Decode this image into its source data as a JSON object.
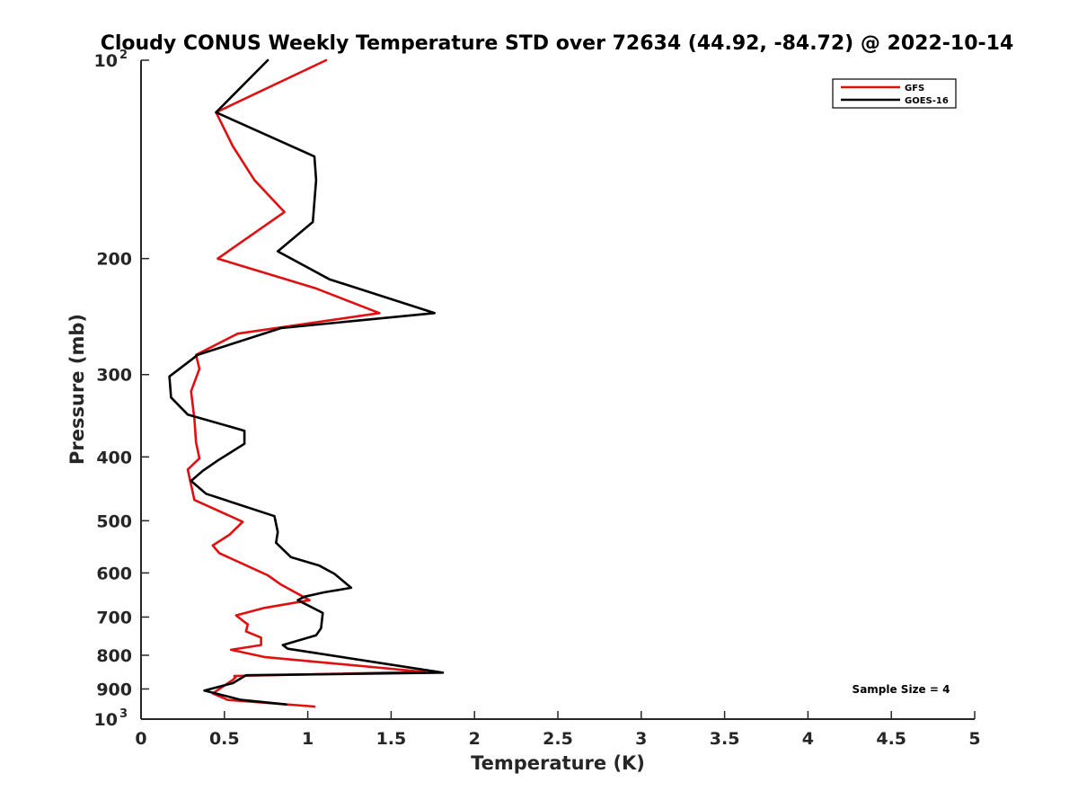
{
  "chart_data": {
    "type": "line",
    "title": "Cloudy CONUS Weekly Temperature STD over 72634 (44.92, -84.72) @ 2022-10-14",
    "xlabel": "Temperature (K)",
    "ylabel": "Pressure (mb)",
    "xlim": [
      0,
      5
    ],
    "ylim": [
      1000,
      100
    ],
    "y_scale": "log",
    "y_reversed": true,
    "x_ticks": [
      {
        "value": 0,
        "label": "0"
      },
      {
        "value": 0.5,
        "label": "0.5"
      },
      {
        "value": 1,
        "label": "1"
      },
      {
        "value": 1.5,
        "label": "1.5"
      },
      {
        "value": 2,
        "label": "2"
      },
      {
        "value": 2.5,
        "label": "2.5"
      },
      {
        "value": 3,
        "label": "3"
      },
      {
        "value": 3.5,
        "label": "3.5"
      },
      {
        "value": 4,
        "label": "4"
      },
      {
        "value": 4.5,
        "label": "4.5"
      },
      {
        "value": 5,
        "label": "5"
      }
    ],
    "y_ticks": [
      {
        "value": 100,
        "base": "10",
        "exp": "2"
      },
      {
        "value": 200,
        "base": "200",
        "exp": ""
      },
      {
        "value": 300,
        "base": "300",
        "exp": ""
      },
      {
        "value": 400,
        "base": "400",
        "exp": ""
      },
      {
        "value": 500,
        "base": "500",
        "exp": ""
      },
      {
        "value": 600,
        "base": "600",
        "exp": ""
      },
      {
        "value": 700,
        "base": "700",
        "exp": ""
      },
      {
        "value": 800,
        "base": "800",
        "exp": ""
      },
      {
        "value": 900,
        "base": "900",
        "exp": ""
      },
      {
        "value": 1000,
        "base": "10",
        "exp": "3"
      }
    ],
    "grid": false,
    "legend_position": "top-right",
    "series": [
      {
        "name": "GFS",
        "color": "#e01010",
        "points": [
          [
            1.11,
            100
          ],
          [
            0.45,
            120
          ],
          [
            0.55,
            135
          ],
          [
            0.68,
            152
          ],
          [
            0.86,
            170
          ],
          [
            0.46,
            200
          ],
          [
            1.05,
            222
          ],
          [
            1.43,
            242
          ],
          [
            0.58,
            260
          ],
          [
            0.33,
            280
          ],
          [
            0.35,
            294
          ],
          [
            0.3,
            318
          ],
          [
            0.32,
            350
          ],
          [
            0.33,
            380
          ],
          [
            0.35,
            402
          ],
          [
            0.28,
            418
          ],
          [
            0.32,
            465
          ],
          [
            0.52,
            490
          ],
          [
            0.61,
            502
          ],
          [
            0.53,
            525
          ],
          [
            0.43,
            545
          ],
          [
            0.47,
            560
          ],
          [
            0.76,
            605
          ],
          [
            0.84,
            625
          ],
          [
            1.01,
            660
          ],
          [
            0.74,
            678
          ],
          [
            0.57,
            696
          ],
          [
            0.62,
            712
          ],
          [
            0.64,
            718
          ],
          [
            0.63,
            736
          ],
          [
            0.72,
            752
          ],
          [
            0.72,
            772
          ],
          [
            0.54,
            785
          ],
          [
            0.74,
            805
          ],
          [
            1.7,
            848
          ],
          [
            0.56,
            860
          ],
          [
            0.57,
            862
          ],
          [
            0.55,
            872
          ],
          [
            0.43,
            914
          ],
          [
            0.52,
            935
          ],
          [
            1.04,
            957
          ]
        ]
      },
      {
        "name": "GOES-16",
        "color": "#000000",
        "points": [
          [
            0.76,
            100
          ],
          [
            0.45,
            120
          ],
          [
            1.04,
            140
          ],
          [
            1.05,
            152
          ],
          [
            1.03,
            176
          ],
          [
            0.82,
            195
          ],
          [
            1.13,
            215
          ],
          [
            1.76,
            242
          ],
          [
            0.84,
            255
          ],
          [
            0.34,
            280
          ],
          [
            0.17,
            302
          ],
          [
            0.18,
            325
          ],
          [
            0.28,
            345
          ],
          [
            0.62,
            365
          ],
          [
            0.62,
            382
          ],
          [
            0.46,
            405
          ],
          [
            0.37,
            420
          ],
          [
            0.3,
            435
          ],
          [
            0.39,
            455
          ],
          [
            0.8,
            492
          ],
          [
            0.82,
            520
          ],
          [
            0.81,
            540
          ],
          [
            0.9,
            568
          ],
          [
            1.07,
            585
          ],
          [
            1.16,
            602
          ],
          [
            1.26,
            632
          ],
          [
            1.1,
            642
          ],
          [
            0.98,
            652
          ],
          [
            0.94,
            660
          ],
          [
            1.09,
            690
          ],
          [
            1.08,
            728
          ],
          [
            1.05,
            746
          ],
          [
            0.85,
            772
          ],
          [
            0.88,
            782
          ],
          [
            1.81,
            850
          ],
          [
            0.63,
            858
          ],
          [
            0.55,
            882
          ],
          [
            0.38,
            905
          ],
          [
            0.6,
            935
          ],
          [
            0.87,
            950
          ]
        ]
      }
    ],
    "annotations": [
      {
        "text": "Sample Size = 4",
        "x": 4.25,
        "y": 900
      }
    ]
  }
}
